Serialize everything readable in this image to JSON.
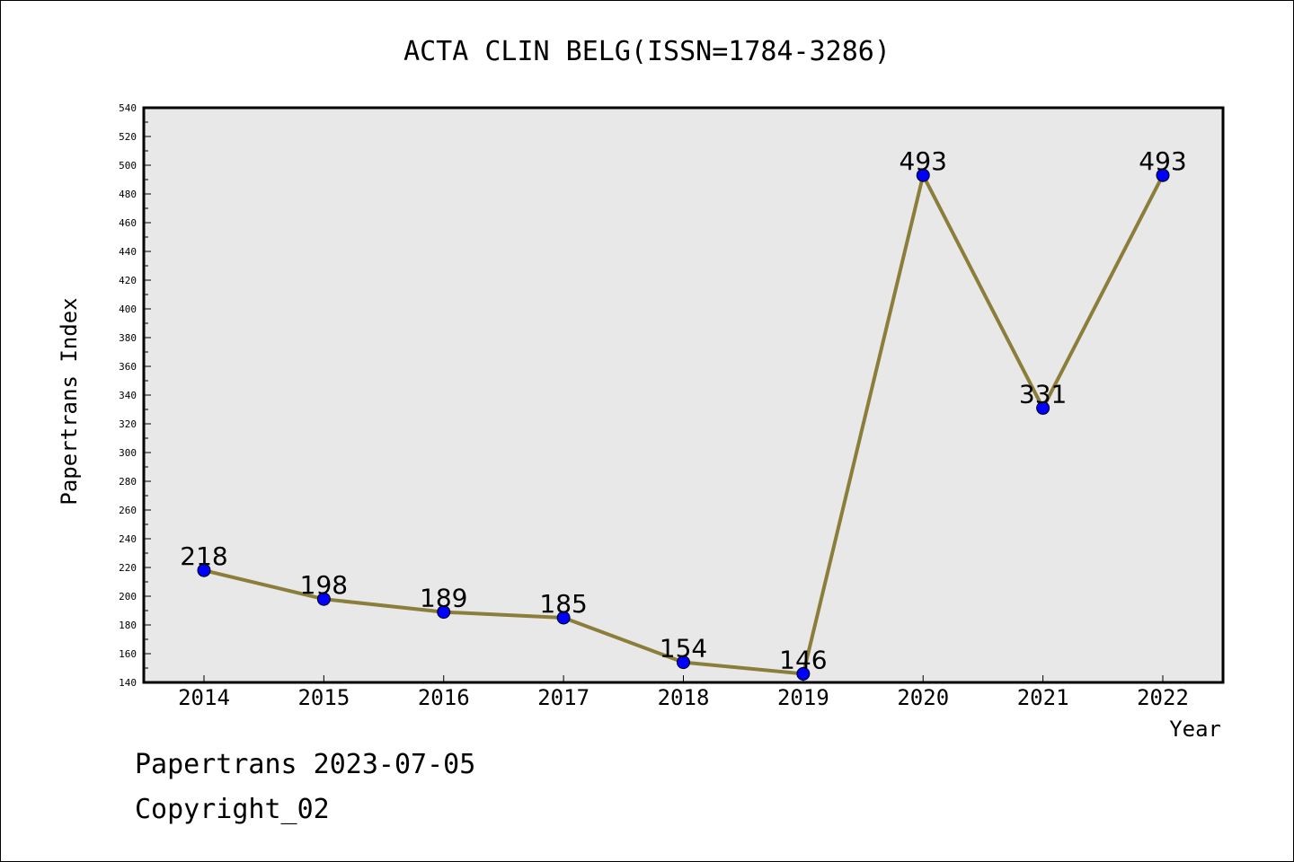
{
  "chart_data": {
    "type": "line",
    "title": "ACTA CLIN BELG(ISSN=1784-3286)",
    "xlabel": "Year",
    "ylabel": "Papertrans Index",
    "categories": [
      "2014",
      "2015",
      "2016",
      "2017",
      "2018",
      "2019",
      "2020",
      "2021",
      "2022"
    ],
    "values": [
      218,
      198,
      189,
      185,
      154,
      146,
      493,
      331,
      493
    ],
    "ylim": [
      140,
      540
    ],
    "yticks": [
      140,
      160,
      180,
      200,
      220,
      240,
      260,
      280,
      300,
      320,
      340,
      360,
      380,
      400,
      420,
      440,
      460,
      480,
      500,
      520,
      540
    ],
    "grid": false,
    "line_color": "#8b7d3a",
    "marker_color": "#0000ff",
    "plot_background": "#e8e8e8"
  },
  "footer": {
    "line1": "Papertrans 2023-07-05",
    "line2": "Copyright_02"
  }
}
